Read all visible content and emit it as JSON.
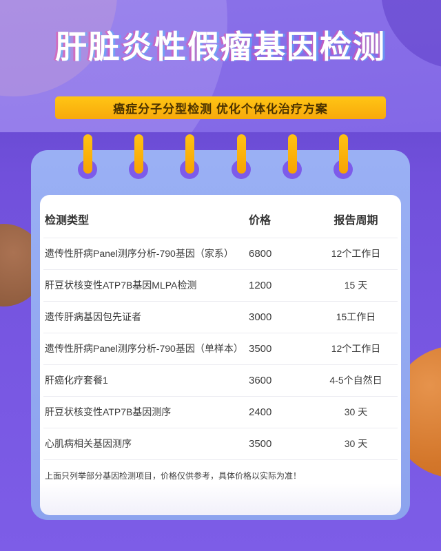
{
  "page": {
    "title": "肝脏炎性假瘤基因检测",
    "banner": "癌症分子分型检测 优化个体化治疗方案"
  },
  "table": {
    "columns": [
      "检测类型",
      "价格",
      "报告周期"
    ],
    "rows": [
      {
        "name": "遗传性肝病Panel测序分析-790基因（家系）",
        "price": "6800",
        "period": "12个工作日"
      },
      {
        "name": "肝豆状核变性ATP7B基因MLPA检测",
        "price": "1200",
        "period": "15 天"
      },
      {
        "name": "遗传肝病基因包先证者",
        "price": "3000",
        "period": "15工作日"
      },
      {
        "name": "遗传性肝病Panel测序分析-790基因（单样本）",
        "price": "3500",
        "period": "12个工作日"
      },
      {
        "name": "肝癌化疗套餐1",
        "price": "3600",
        "period": "4-5个自然日"
      },
      {
        "name": "肝豆状核变性ATP7B基因测序",
        "price": "2400",
        "period": "30 天"
      },
      {
        "name": "心肌病相关基因测序",
        "price": "3500",
        "period": "30 天"
      }
    ],
    "note": "上面只列举部分基因检测项目，价格仅供参考，具体价格以实际为准！"
  },
  "colors": {
    "background_purple": "#7B5DE4",
    "band_purple": "#6B4CD5",
    "card_blue": "#92A9F1",
    "card_white": "#FFFFFF",
    "banner_yellow": "#FFB90F",
    "banner_text": "#4A3200",
    "pin_yellow": "#FBAE07",
    "pin_hole_purple": "#7D5BEA",
    "title_text": "#FFFFFF",
    "title_glitch_left": "#FF4696",
    "title_glitch_right": "#46C8FF",
    "table_text": "#3A3A3A",
    "divider": "#EBEBF1",
    "orange_circle": "#D3762A",
    "brown_circle": "#9A664A"
  },
  "icons": {
    "pin_count": 6
  }
}
